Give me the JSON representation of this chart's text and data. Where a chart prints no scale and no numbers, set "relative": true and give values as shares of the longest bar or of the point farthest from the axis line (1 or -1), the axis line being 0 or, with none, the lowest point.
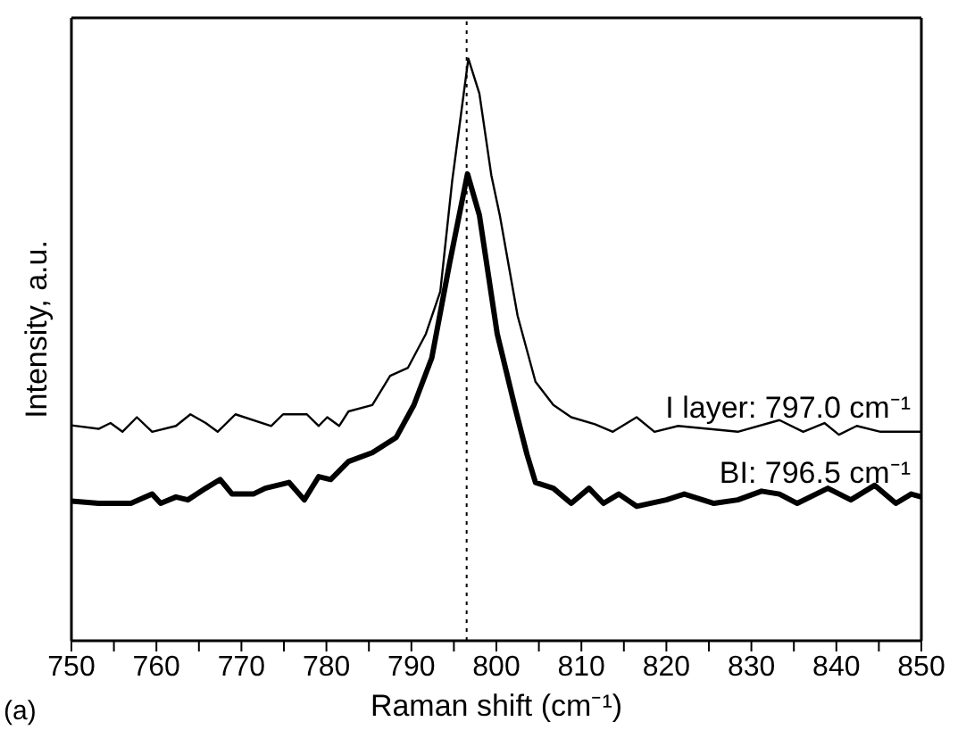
{
  "chart_data": {
    "type": "line",
    "relative": true,
    "xlabel": "Raman shift (cm⁻¹)",
    "ylabel": "Intensity, a.u.",
    "annotations": [
      "(a)"
    ],
    "xlim": [
      750,
      850
    ],
    "xticks": [
      750,
      {
        "value": 755,
        "label": null
      },
      760,
      {
        "value": 765,
        "label": null
      },
      770,
      {
        "value": 775,
        "label": null
      },
      780,
      {
        "value": 785,
        "label": null
      },
      790,
      {
        "value": 795,
        "label": null
      },
      800,
      {
        "value": 805,
        "label": null
      },
      810,
      {
        "value": 815,
        "label": null
      },
      820,
      {
        "value": 825,
        "label": null
      },
      830,
      {
        "value": 835,
        "label": null
      },
      840,
      {
        "value": 845,
        "label": null
      },
      850
    ],
    "marker": "none",
    "line_style": "solid",
    "ref_lines": [
      {
        "axis": "x",
        "value": 796.5,
        "color": "#000000",
        "line_style": "dotted"
      }
    ],
    "series": [
      {
        "name": "I layer: 797.0 cm⁻¹",
        "color": "#000000",
        "x": [
          750,
          753.2,
          754.6,
          756.0,
          757.7,
          759.5,
          762.3,
          764.0,
          765.8,
          767.2,
          769.3,
          773.5,
          774.9,
          777.7,
          779.1,
          780.1,
          781.5,
          782.6,
          785.4,
          787.5,
          789.6,
          791.7,
          793.4,
          794.8,
          796.7,
          798.0,
          799.4,
          800.4,
          802.5,
          804.6,
          806.7,
          808.8,
          811.6,
          813.7,
          816.5,
          818.6,
          821.4,
          824.9,
          828.4,
          833.3,
          836.1,
          838.6,
          840.3,
          842.4,
          845.2,
          850
        ],
        "values": [
          0.37,
          0.364,
          0.374,
          0.359,
          0.384,
          0.359,
          0.369,
          0.389,
          0.374,
          0.359,
          0.389,
          0.369,
          0.389,
          0.389,
          0.369,
          0.384,
          0.369,
          0.394,
          0.405,
          0.455,
          0.469,
          0.527,
          0.6,
          0.79,
          1.0,
          0.94,
          0.8,
          0.731,
          0.558,
          0.445,
          0.405,
          0.384,
          0.372,
          0.359,
          0.384,
          0.359,
          0.369,
          0.364,
          0.359,
          0.379,
          0.359,
          0.374,
          0.354,
          0.369,
          0.359,
          0.359
        ]
      },
      {
        "name": "BI: 796.5 cm⁻¹",
        "color": "#000000",
        "x": [
          750,
          753.2,
          755.0,
          757.0,
          759.5,
          760.5,
          762.3,
          763.7,
          765.8,
          767.5,
          768.9,
          771.4,
          772.8,
          775.6,
          777.4,
          779.1,
          780.5,
          782.6,
          785.4,
          788.2,
          790.3,
          792.4,
          794.5,
          796.6,
          798.0,
          800.1,
          802.2,
          803.6,
          804.6,
          806.7,
          808.8,
          810.9,
          812.6,
          814.4,
          816.5,
          820.0,
          822.1,
          825.6,
          828.4,
          831.2,
          833.3,
          835.4,
          839.0,
          841.7,
          844.5,
          847.0,
          848.8,
          850
        ],
        "values": [
          0.24,
          0.236,
          0.236,
          0.236,
          0.252,
          0.236,
          0.247,
          0.242,
          0.262,
          0.277,
          0.252,
          0.252,
          0.262,
          0.272,
          0.242,
          0.282,
          0.277,
          0.308,
          0.323,
          0.349,
          0.405,
          0.486,
          0.649,
          0.802,
          0.731,
          0.527,
          0.4,
          0.32,
          0.272,
          0.262,
          0.236,
          0.262,
          0.236,
          0.252,
          0.231,
          0.242,
          0.252,
          0.236,
          0.242,
          0.257,
          0.252,
          0.236,
          0.262,
          0.242,
          0.267,
          0.236,
          0.252,
          0.247
        ]
      }
    ]
  }
}
